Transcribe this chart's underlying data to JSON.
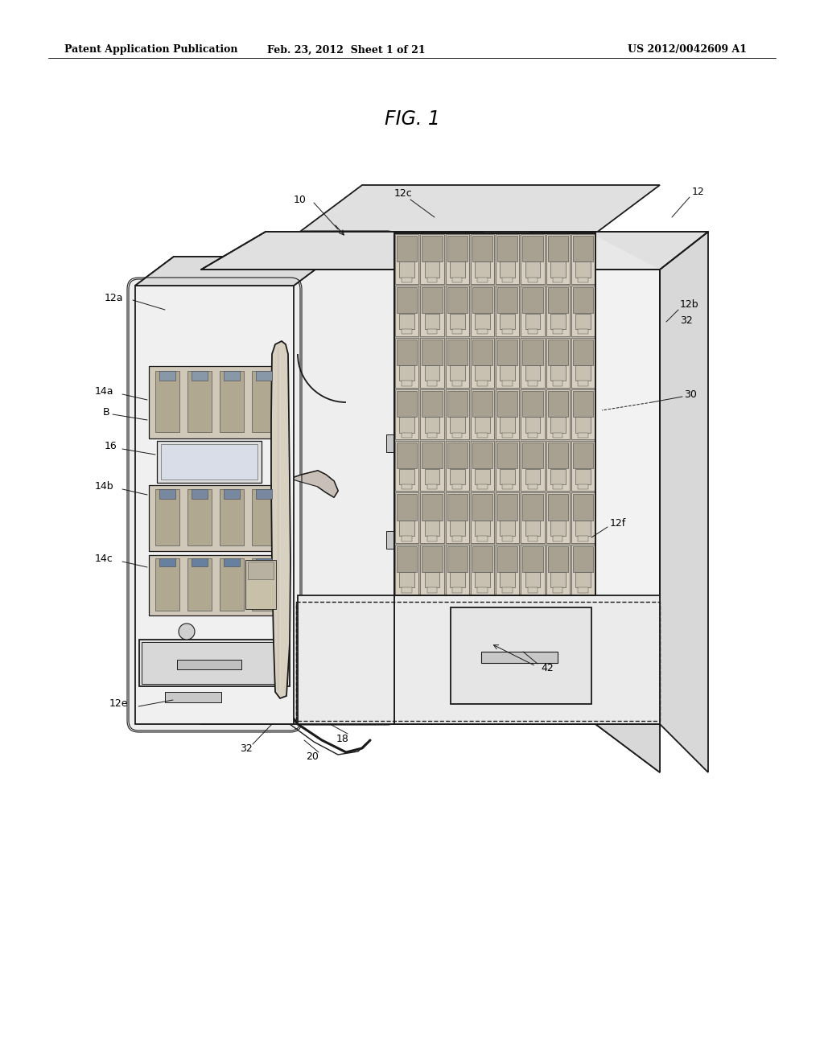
{
  "background_color": "#ffffff",
  "header_left": "Patent Application Publication",
  "header_center": "Feb. 23, 2012  Sheet 1 of 21",
  "header_right": "US 2012/0042609 A1",
  "figure_title": "FIG. 1",
  "line_color": "#1a1a1a",
  "text_color": "#000000",
  "face_light": "#f5f5f5",
  "face_mid": "#e8e8e8",
  "face_dark": "#d8d8d8",
  "face_darker": "#c8c8c8",
  "grid_bg": "#c0b8a8",
  "cell_face": "#d8d0c0",
  "cell_inner": "#b0a890"
}
